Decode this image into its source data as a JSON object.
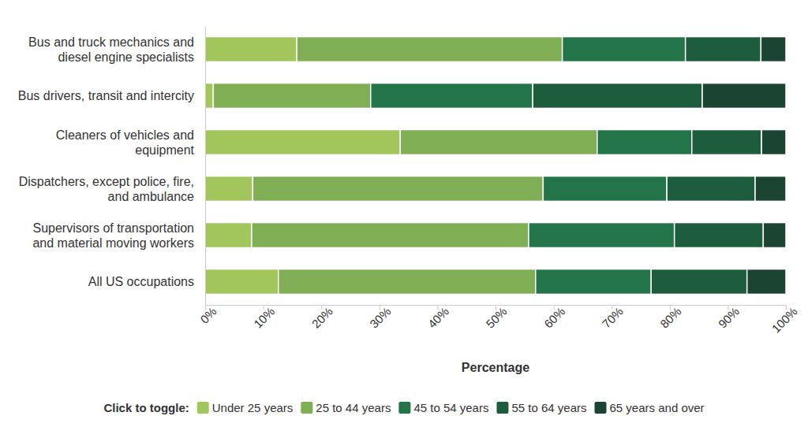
{
  "chart_data": {
    "type": "bar",
    "orientation": "horizontal",
    "stacked": true,
    "grid": false,
    "legend": "bottom",
    "legend_title": "Click to toggle:",
    "xlabel": "Percentage",
    "categories": [
      "Bus and truck mechanics and diesel engine specialists",
      "Bus drivers, transit and intercity",
      "Cleaners of vehicles and equipment",
      "Dispatchers, except police, fire, and ambulance",
      "Supervisors of transportation and material moving workers",
      "All US occupations"
    ],
    "series": [
      {
        "name": "Under 25 years",
        "color": "#a2c65b",
        "values": [
          15.8,
          1.4,
          33.6,
          8.2,
          8.0,
          12.6
        ]
      },
      {
        "name": "25 to 44 years",
        "color": "#7fae55",
        "values": [
          45.7,
          27.1,
          33.9,
          50.0,
          47.7,
          44.3
        ]
      },
      {
        "name": "45 to 54 years",
        "color": "#24744a",
        "values": [
          21.2,
          27.9,
          16.3,
          21.3,
          25.1,
          19.9
        ]
      },
      {
        "name": "55 to 64 years",
        "color": "#1d5c3c",
        "values": [
          13.0,
          29.2,
          12.0,
          15.2,
          15.3,
          16.5
        ]
      },
      {
        "name": "65 years and over",
        "color": "#1b4532",
        "values": [
          4.3,
          14.4,
          4.2,
          5.3,
          3.9,
          6.7
        ]
      }
    ],
    "xlim": [
      0,
      100
    ],
    "xticks": [
      {
        "value": 0,
        "label": "0%"
      },
      {
        "value": 10,
        "label": "10%"
      },
      {
        "value": 20,
        "label": "20%"
      },
      {
        "value": 30,
        "label": "30%"
      },
      {
        "value": 40,
        "label": "40%"
      },
      {
        "value": 50,
        "label": "50%"
      },
      {
        "value": 60,
        "label": "60%"
      },
      {
        "value": 70,
        "label": "70%"
      },
      {
        "value": 80,
        "label": "80%"
      },
      {
        "value": 90,
        "label": "90%"
      },
      {
        "value": 100,
        "label": "100%"
      }
    ]
  }
}
